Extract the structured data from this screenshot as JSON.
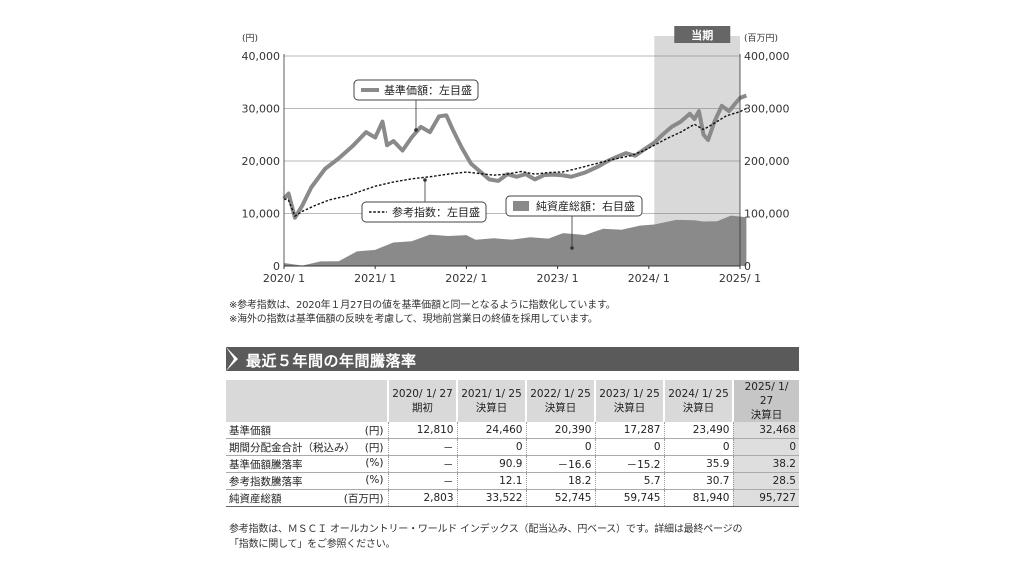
{
  "chart_data": {
    "type": "line",
    "left_axis_unit": "(円)",
    "right_axis_unit": "(百万円)",
    "left_ticks": [
      "40,000",
      "30,000",
      "20,000",
      "10,000",
      "0"
    ],
    "right_ticks": [
      "400,000",
      "300,000",
      "200,000",
      "100,000",
      "0"
    ],
    "x_ticks": [
      "2020/ 1",
      "2021/ 1",
      "2022/ 1",
      "2023/ 1",
      "2024/ 1",
      "2025/ 1"
    ],
    "left_ylim": [
      0,
      40000
    ],
    "right_ylim": [
      0,
      400000
    ],
    "current_period_label": "当期",
    "series": [
      {
        "name": "基準価額：左目盛",
        "kind": "line",
        "axis": "left",
        "color": "#8a8a8a",
        "points": [
          [
            2020.0,
            12810
          ],
          [
            2020.05,
            13800
          ],
          [
            2020.12,
            9200
          ],
          [
            2020.2,
            11500
          ],
          [
            2020.3,
            15000
          ],
          [
            2020.45,
            18500
          ],
          [
            2020.6,
            20500
          ],
          [
            2020.75,
            22800
          ],
          [
            2020.9,
            25500
          ],
          [
            2021.0,
            24460
          ],
          [
            2021.08,
            27500
          ],
          [
            2021.13,
            23000
          ],
          [
            2021.2,
            23800
          ],
          [
            2021.3,
            22000
          ],
          [
            2021.4,
            24500
          ],
          [
            2021.5,
            26500
          ],
          [
            2021.6,
            25500
          ],
          [
            2021.7,
            28500
          ],
          [
            2021.78,
            28700
          ],
          [
            2021.85,
            26000
          ],
          [
            2021.95,
            22500
          ],
          [
            2022.05,
            19500
          ],
          [
            2022.15,
            18000
          ],
          [
            2022.25,
            16500
          ],
          [
            2022.35,
            16200
          ],
          [
            2022.45,
            17500
          ],
          [
            2022.55,
            17000
          ],
          [
            2022.65,
            17500
          ],
          [
            2022.75,
            16500
          ],
          [
            2022.85,
            17300
          ],
          [
            2022.95,
            17400
          ],
          [
            2023.05,
            17287
          ],
          [
            2023.15,
            17000
          ],
          [
            2023.3,
            17800
          ],
          [
            2023.45,
            19000
          ],
          [
            2023.55,
            20000
          ],
          [
            2023.65,
            20800
          ],
          [
            2023.75,
            21500
          ],
          [
            2023.85,
            21000
          ],
          [
            2023.95,
            22200
          ],
          [
            2024.06,
            23490
          ],
          [
            2024.15,
            25000
          ],
          [
            2024.25,
            26500
          ],
          [
            2024.35,
            27500
          ],
          [
            2024.45,
            29000
          ],
          [
            2024.5,
            28000
          ],
          [
            2024.55,
            29500
          ],
          [
            2024.6,
            25000
          ],
          [
            2024.65,
            24000
          ],
          [
            2024.72,
            27500
          ],
          [
            2024.8,
            30500
          ],
          [
            2024.88,
            29500
          ],
          [
            2024.95,
            31000
          ],
          [
            2025.0,
            32000
          ],
          [
            2025.07,
            32468
          ]
        ]
      },
      {
        "name": "参考指数：左目盛",
        "kind": "dashed",
        "axis": "left",
        "color": "#111111",
        "points": [
          [
            2020.0,
            12800
          ],
          [
            2020.05,
            12500
          ],
          [
            2020.12,
            9500
          ],
          [
            2020.2,
            10400
          ],
          [
            2020.35,
            11600
          ],
          [
            2020.5,
            12600
          ],
          [
            2020.7,
            13400
          ],
          [
            2020.9,
            14600
          ],
          [
            2021.0,
            15200
          ],
          [
            2021.2,
            16000
          ],
          [
            2021.4,
            16600
          ],
          [
            2021.6,
            17000
          ],
          [
            2021.8,
            17500
          ],
          [
            2022.0,
            17900
          ],
          [
            2022.15,
            17600
          ],
          [
            2022.3,
            17300
          ],
          [
            2022.45,
            17500
          ],
          [
            2022.6,
            18000
          ],
          [
            2022.75,
            17500
          ],
          [
            2022.9,
            17800
          ],
          [
            2023.05,
            17900
          ],
          [
            2023.2,
            18500
          ],
          [
            2023.4,
            19400
          ],
          [
            2023.6,
            20300
          ],
          [
            2023.8,
            21000
          ],
          [
            2023.95,
            22000
          ],
          [
            2024.06,
            23000
          ],
          [
            2024.2,
            24300
          ],
          [
            2024.35,
            25500
          ],
          [
            2024.5,
            27000
          ],
          [
            2024.6,
            26000
          ],
          [
            2024.7,
            27000
          ],
          [
            2024.85,
            28600
          ],
          [
            2025.0,
            29400
          ],
          [
            2025.07,
            30000
          ]
        ]
      },
      {
        "name": "純資産総額：右目盛",
        "kind": "area",
        "axis": "right",
        "color": "#8a8a8a",
        "points": [
          [
            2020.0,
            2803
          ],
          [
            2020.2,
            3500
          ],
          [
            2020.4,
            6000
          ],
          [
            2020.6,
            12000
          ],
          [
            2020.8,
            25000
          ],
          [
            2021.0,
            33522
          ],
          [
            2021.2,
            42000
          ],
          [
            2021.4,
            50000
          ],
          [
            2021.6,
            57000
          ],
          [
            2021.8,
            60000
          ],
          [
            2022.0,
            56000
          ],
          [
            2022.1,
            52745
          ],
          [
            2022.3,
            50000
          ],
          [
            2022.5,
            53000
          ],
          [
            2022.7,
            52000
          ],
          [
            2022.9,
            55000
          ],
          [
            2023.06,
            59745
          ],
          [
            2023.3,
            62000
          ],
          [
            2023.5,
            68000
          ],
          [
            2023.7,
            72000
          ],
          [
            2023.9,
            74000
          ],
          [
            2024.06,
            81940
          ],
          [
            2024.3,
            85000
          ],
          [
            2024.5,
            90000
          ],
          [
            2024.6,
            82000
          ],
          [
            2024.75,
            88000
          ],
          [
            2024.9,
            93000
          ],
          [
            2025.07,
            95727
          ]
        ]
      }
    ]
  },
  "notes": [
    "※参考指数は、2020年１月27日の値を基準価額と同一となるように指数化しています。",
    "※海外の指数は基準価額の反映を考慮して、現地前営業日の終値を採用しています。"
  ],
  "section_title": "最近５年間の年間騰落率",
  "table": {
    "columns": [
      {
        "date": "2020/ 1/ 27",
        "sub": "期初"
      },
      {
        "date": "2021/ 1/ 25",
        "sub": "決算日"
      },
      {
        "date": "2022/ 1/ 25",
        "sub": "決算日"
      },
      {
        "date": "2023/ 1/ 25",
        "sub": "決算日"
      },
      {
        "date": "2024/ 1/ 25",
        "sub": "決算日"
      },
      {
        "date": "2025/ 1/ 27",
        "sub": "決算日"
      }
    ],
    "rows": [
      {
        "label": "基準価額",
        "unit": "(円)",
        "values": [
          "12,810",
          "24,460",
          "20,390",
          "17,287",
          "23,490",
          "32,468"
        ]
      },
      {
        "label": "期間分配金合計（税込み）",
        "unit": "(円)",
        "values": [
          "－",
          "0",
          "0",
          "0",
          "0",
          "0"
        ]
      },
      {
        "label": "基準価額騰落率",
        "unit": "(%)",
        "values": [
          "－",
          "90.9",
          "－16.6",
          "－15.2",
          "35.9",
          "38.2"
        ]
      },
      {
        "label": "参考指数騰落率",
        "unit": "(%)",
        "values": [
          "－",
          "12.1",
          "18.2",
          "5.7",
          "30.7",
          "28.5"
        ]
      },
      {
        "label": "純資産総額",
        "unit": "(百万円)",
        "values": [
          "2,803",
          "33,522",
          "52,745",
          "59,745",
          "81,940",
          "95,727"
        ]
      }
    ]
  },
  "footnotes": [
    "参考指数は、ＭＳＣＩ オールカントリー・ワールド インデックス（配当込み、円ベース）です。詳細は最終ページの",
    "「指数に関して」をご参照ください。"
  ]
}
